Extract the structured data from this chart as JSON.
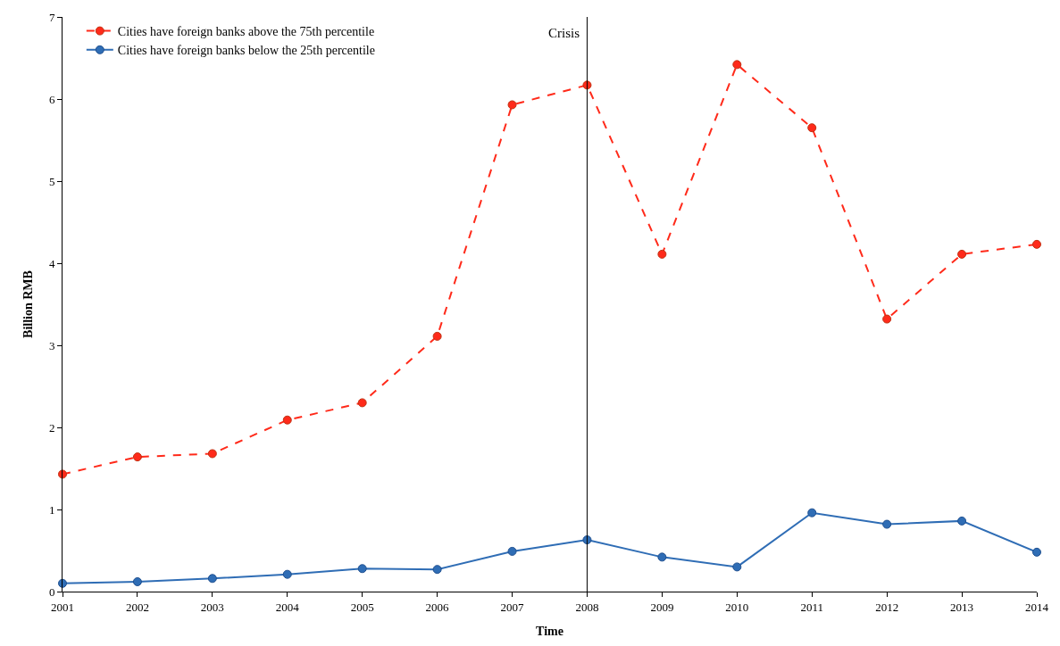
{
  "chart_data": {
    "type": "line",
    "xlabel": "Time",
    "ylabel": "Billion RMB",
    "x": [
      2001,
      2002,
      2003,
      2004,
      2005,
      2006,
      2007,
      2008,
      2009,
      2010,
      2011,
      2012,
      2013,
      2014
    ],
    "series": [
      {
        "name": "Cities have foreign banks above the 75th percentile",
        "color": "#ff2a1a",
        "line_style": "dashed",
        "values": [
          1.43,
          1.64,
          1.68,
          2.09,
          2.3,
          3.11,
          5.93,
          6.17,
          4.11,
          6.42,
          5.65,
          3.32,
          4.11,
          4.23
        ]
      },
      {
        "name": "Cities have foreign banks below the 25th percentile",
        "color": "#2f6db5",
        "line_style": "solid",
        "values": [
          0.1,
          0.12,
          0.16,
          0.21,
          0.28,
          0.27,
          0.49,
          0.63,
          0.42,
          0.3,
          0.96,
          0.82,
          0.86,
          0.48
        ]
      }
    ],
    "xlim": [
      2001,
      2014
    ],
    "xticks": [
      2001,
      2002,
      2003,
      2004,
      2005,
      2006,
      2007,
      2008,
      2009,
      2010,
      2011,
      2012,
      2013,
      2014
    ],
    "ylim": [
      0,
      7
    ],
    "yticks": [
      0,
      1,
      2,
      3,
      4,
      5,
      6,
      7
    ],
    "ref_lines": [
      {
        "axis": "x",
        "value": 2008,
        "label": "Crisis",
        "color": "#000000"
      }
    ],
    "marker": "circle",
    "legend": "top left"
  }
}
